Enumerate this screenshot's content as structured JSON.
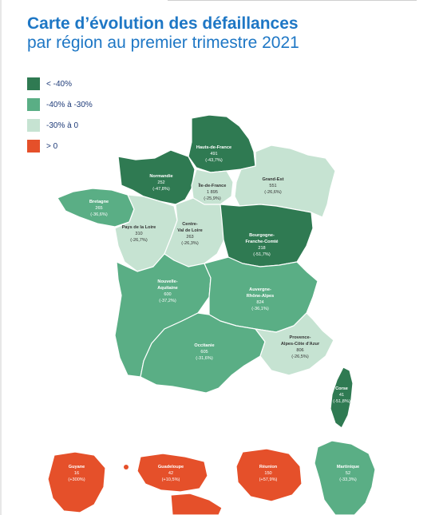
{
  "title": {
    "line1": "Carte d’évolution des défaillances",
    "line2": "par région au premier trimestre 2021"
  },
  "colors": {
    "dark_green": "#2f7a52",
    "mid_green": "#5aae85",
    "light_green": "#c6e3d2",
    "red": "#e5502a"
  },
  "legend": [
    {
      "label": "< -40%",
      "color": "#2f7a52"
    },
    {
      "label": "-40% à -30%",
      "color": "#5aae85"
    },
    {
      "label": "-30% à 0",
      "color": "#c6e3d2"
    },
    {
      "label": "> 0",
      "color": "#e5502a"
    }
  ],
  "regions": [
    {
      "name": "Hauts-de-France",
      "count": "491",
      "change": "(-43,7%)",
      "category": "< -40%"
    },
    {
      "name": "Normandie",
      "count": "252",
      "change": "(-47,8%)",
      "category": "< -40%"
    },
    {
      "name": "Île-de-France",
      "count": "1 895",
      "change": "(-25,9%)",
      "category": "-30% à 0"
    },
    {
      "name": "Grand-Est",
      "count": "551",
      "change": "(-26,6%)",
      "category": "-30% à 0"
    },
    {
      "name": "Bretagne",
      "count": "265",
      "change": "(-36,6%)",
      "category": "-40% à -30%"
    },
    {
      "name": "Pays de la Loire",
      "count": "310",
      "change": "(-26,7%)",
      "category": "-30% à 0"
    },
    {
      "name": "Centre-Val de Loire",
      "name_l1": "Centre-",
      "name_l2": "Val de Loire",
      "count": "263",
      "change": "(-26,3%)",
      "category": "-30% à 0"
    },
    {
      "name": "Bourgogne-Franche-Comté",
      "name_l1": "Bourgogne-",
      "name_l2": "Franche-Comté",
      "count": "218",
      "change": "(-51,7%)",
      "category": "< -40%"
    },
    {
      "name": "Nouvelle-Aquitaine",
      "name_l1": "Nouvelle-",
      "name_l2": "Aquitaine",
      "count": "600",
      "change": "(-37,2%)",
      "category": "-40% à -30%"
    },
    {
      "name": "Auvergne-Rhône-Alpes",
      "name_l1": "Auvergne-",
      "name_l2": "Rhône-Alpes",
      "count": "824",
      "change": "(-36,1%)",
      "category": "-40% à -30%"
    },
    {
      "name": "Occitanie",
      "count": "605",
      "change": "(-31,6%)",
      "category": "-40% à -30%"
    },
    {
      "name": "Provence-Alpes-Côte d'Azur",
      "name_l1": "Provence-",
      "name_l2": "Alpes-Côte d'Azur",
      "count": "806",
      "change": "(-26,5%)",
      "category": "-30% à 0"
    },
    {
      "name": "Corse",
      "count": "41",
      "change": "(-51,8%)",
      "category": "< -40%"
    },
    {
      "name": "Guyane",
      "count": "16",
      "change": "(+300%)",
      "category": "> 0"
    },
    {
      "name": "Guadeloupe",
      "count": "42",
      "change": "(+10,5%)",
      "category": "> 0"
    },
    {
      "name": "Réunion",
      "count": "150",
      "change": "(+57,9%)",
      "category": "> 0"
    },
    {
      "name": "Martinique",
      "count": "52",
      "change": "(-33,3%)",
      "category": "-40% à -30%"
    }
  ]
}
